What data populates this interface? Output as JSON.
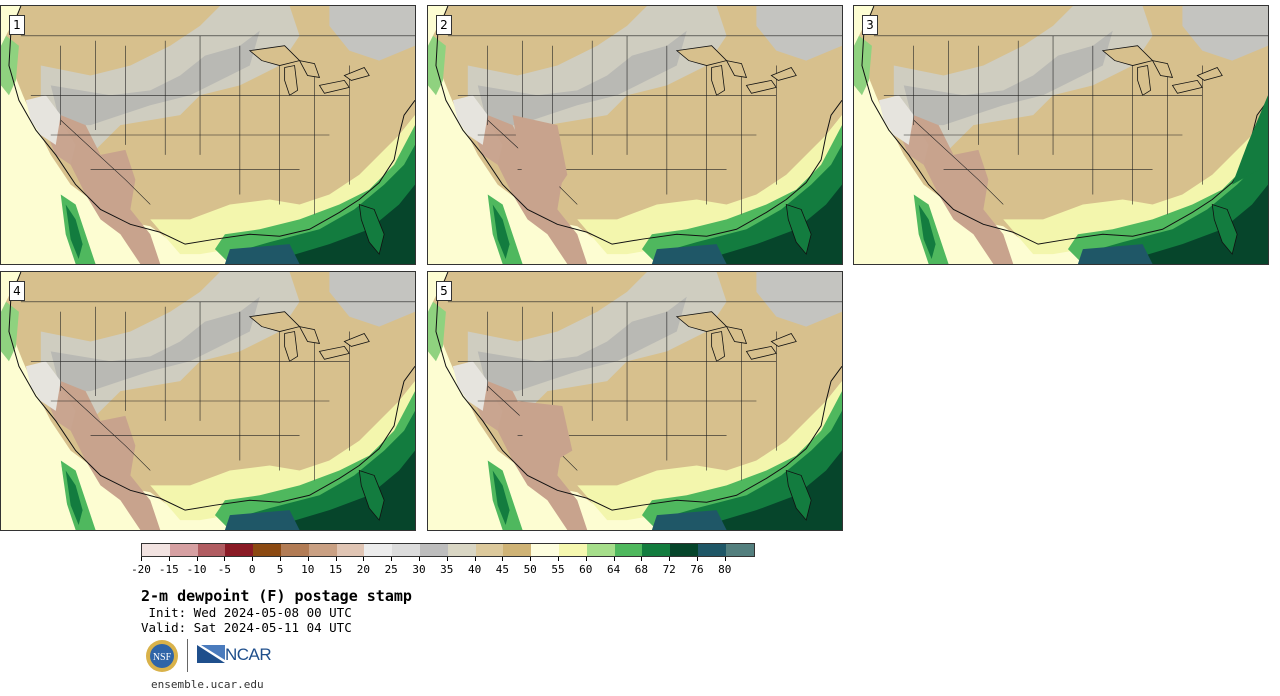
{
  "panels": [
    {
      "number": "1"
    },
    {
      "number": "2"
    },
    {
      "number": "3"
    },
    {
      "number": "4"
    },
    {
      "number": "5"
    }
  ],
  "colorbar": {
    "colors": [
      "#f2e3e1",
      "#d6a0a2",
      "#b05c61",
      "#8a1b26",
      "#8c4a13",
      "#b27c55",
      "#c9a083",
      "#e0c5b4",
      "#ececec",
      "#dcdcdc",
      "#bdbdbd",
      "#d9d6c4",
      "#dcc99c",
      "#cfb376",
      "#fefedf",
      "#f6f8b0",
      "#a6de8b",
      "#4fb85e",
      "#137c3f",
      "#06452b",
      "#1f5767",
      "#537f7e"
    ],
    "tick_labels": [
      "-20",
      "-15",
      "-10",
      "-5",
      "0",
      "5",
      "10",
      "15",
      "20",
      "25",
      "30",
      "35",
      "40",
      "45",
      "50",
      "55",
      "60",
      "64",
      "68",
      "72",
      "76",
      "80"
    ]
  },
  "title": "2-m dewpoint (F) postage stamp",
  "init": " Init: Wed 2024-05-08 00 UTC",
  "valid": "Valid: Sat 2024-05-11 04 UTC",
  "logos": {
    "ncar": "NCAR",
    "nsf": "NSF"
  },
  "website": "ensemble.ucar.edu"
}
